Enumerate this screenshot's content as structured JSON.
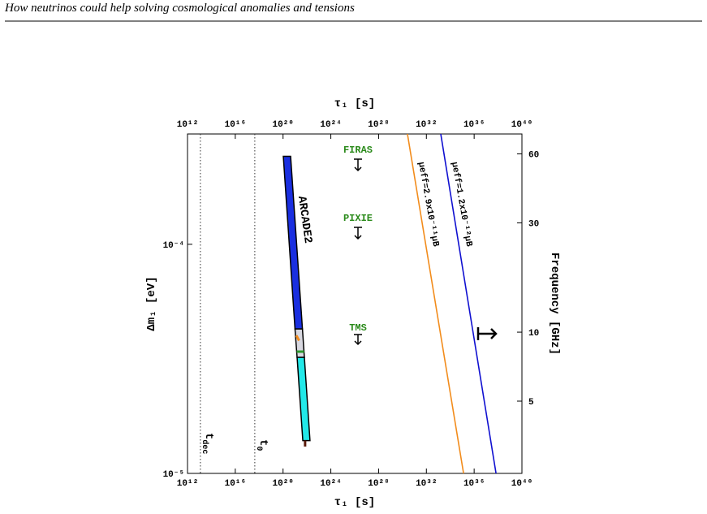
{
  "header": {
    "title": "How neutrinos could help solving cosmological anomalies and tensions"
  },
  "chart_data": {
    "type": "line",
    "xlabel": "τ₁ [s]",
    "ylabel": "Δm₁ [eV]",
    "y2label": "Frequency [GHz]",
    "x_log": true,
    "y_log": true,
    "y2_log": true,
    "xlim": [
      1000000000000.0,
      1e+40
    ],
    "xticks": [
      {
        "value": 1000000000000.0,
        "label": "10¹²"
      },
      {
        "value": 1e+16,
        "label": "10¹⁶"
      },
      {
        "value": 1e+20,
        "label": "10²⁰"
      },
      {
        "value": 1e+24,
        "label": "10²⁴"
      },
      {
        "value": 1e+28,
        "label": "10²⁸"
      },
      {
        "value": 1e+32,
        "label": "10³²"
      },
      {
        "value": 1e+36,
        "label": "10³⁶"
      },
      {
        "value": 1e+40,
        "label": "10⁴⁰"
      }
    ],
    "ylim": [
      1e-05,
      0.000303
    ],
    "yticks": [
      {
        "value": 1e-05,
        "label": "10⁻⁵"
      },
      {
        "value": 0.0001,
        "label": "10⁻⁴"
      }
    ],
    "y2lim": [
      2.418,
      73.3
    ],
    "y2ticks": [
      5,
      10,
      30,
      60
    ],
    "series": [
      {
        "color": "#f28c1c",
        "x": [
          2.6e+30,
          1.3e+35
        ],
        "values": [
          0.000303,
          1e-05
        ]
      },
      {
        "color": "#1010d0",
        "x": [
          1.6e+33,
          6.8e+37
        ],
        "values": [
          0.000303,
          1e-05
        ]
      }
    ],
    "band_lines": [
      {
        "color": "#2e9a2e",
        "x": [
          1.4e+21,
          5.7e+21
        ],
        "values": [
          3.4e-05,
          3.4e-05
        ]
      },
      {
        "color": "#f28c1c",
        "x": [
          1.3e+21,
          2.2e+21
        ],
        "values": [
          4e-05,
          3.8e-05
        ]
      },
      {
        "color": "#5a1a0a",
        "x": [
          7e+21,
          7e+21
        ],
        "values": [
          1.39e-05,
          1.31e-05
        ]
      }
    ],
    "regions": [
      {
        "color": "#1a2fe0",
        "x": [
          1.05e+20,
          4.3e+20,
          4.2e+21,
          1e+21
        ],
        "y": [
          0.000242,
          0.000242,
          4.27e-05,
          4.27e-05
        ]
      },
      {
        "color": "#d8d8e0",
        "x": [
          1e+21,
          4.2e+21,
          6.1e+21,
          1.5e+21
        ],
        "y": [
          4.27e-05,
          4.27e-05,
          3.21e-05,
          3.21e-05
        ]
      },
      {
        "color": "#22e8e8",
        "x": [
          1.5e+21,
          6.1e+21,
          1.8e+22,
          4.5e+21
        ],
        "y": [
          3.21e-05,
          3.21e-05,
          1.39e-05,
          1.39e-05
        ]
      }
    ],
    "vlines": [
      12000000000000.0,
      4.3e+17
    ],
    "annotations": {
      "arcade": "ARCADE2",
      "firas": "FIRAS",
      "pixie": "PIXIE",
      "tms": "TMS",
      "mu1": "μeff=2.9x10⁻¹¹μB",
      "mu2": "μeff=1.2x10⁻¹²μB",
      "tdec": "t",
      "tdec_sub": "dec",
      "t0": "t",
      "t0_sub": "0"
    }
  }
}
